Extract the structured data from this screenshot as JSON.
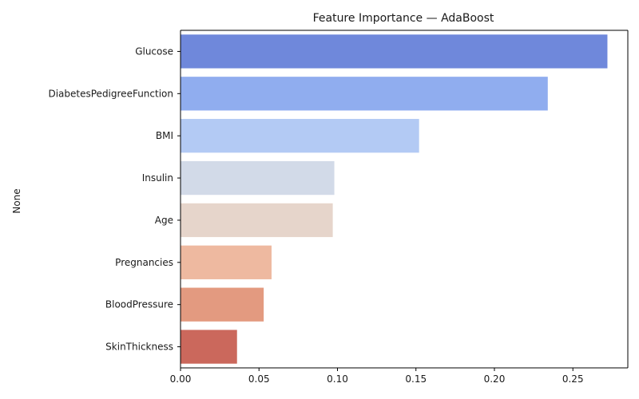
{
  "chart_data": {
    "type": "bar",
    "orientation": "horizontal",
    "title": "Feature Importance — AdaBoost",
    "xlabel": "",
    "ylabel": "None",
    "xlim": [
      0,
      0.285
    ],
    "xticks": [
      "0.00",
      "0.05",
      "0.10",
      "0.15",
      "0.20",
      "0.25"
    ],
    "grid": false,
    "categories": [
      "Glucose",
      "DiabetesPedigreeFunction",
      "BMI",
      "Insulin",
      "Age",
      "Pregnancies",
      "BloodPressure",
      "SkinThickness"
    ],
    "values": [
      0.272,
      0.234,
      0.152,
      0.098,
      0.097,
      0.058,
      0.053,
      0.036
    ],
    "colors": [
      "#6F88DB",
      "#90ADEF",
      "#B3CAF4",
      "#D2DAE8",
      "#E6D5CB",
      "#EEB9A0",
      "#E39A80",
      "#CB685C"
    ]
  }
}
